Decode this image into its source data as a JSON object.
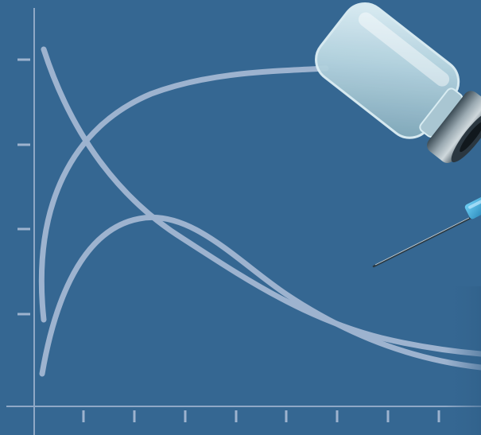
{
  "image": {
    "description_free": true,
    "palette": {
      "background": "#356792",
      "line": "#9db3cf",
      "axis": "#8fa8c6",
      "glass": "#cfe6ee",
      "metal": "#5c6f7a",
      "needle_hub": "#2f9bd0"
    },
    "icons": {
      "vial": "vial-icon",
      "syringe": "syringe-needle-icon"
    },
    "axes": {
      "y_ticks": 4,
      "x_ticks": 8
    },
    "curves": 3
  }
}
